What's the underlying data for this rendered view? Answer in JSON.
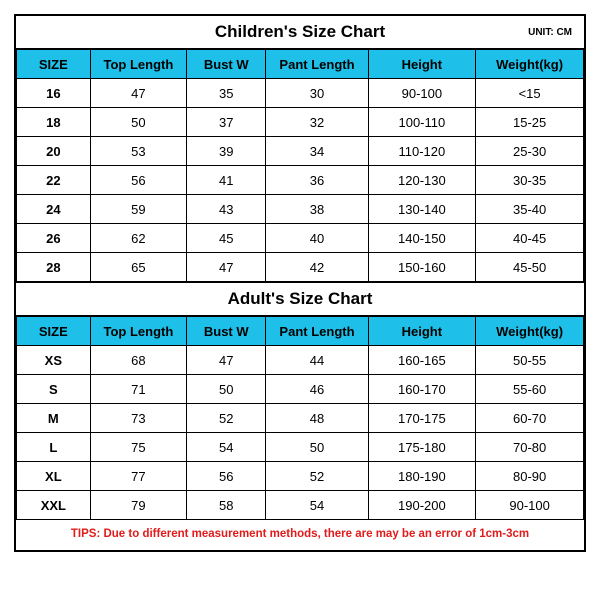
{
  "header_bg": "#1ec0e9",
  "tips_color": "#e11b1b",
  "children": {
    "title": "Children's Size Chart",
    "unit": "UNIT: CM",
    "columns": [
      "SIZE",
      "Top Length",
      "Bust W",
      "Pant Length",
      "Height",
      "Weight(kg)"
    ],
    "rows": [
      [
        "16",
        "47",
        "35",
        "30",
        "90-100",
        "<15"
      ],
      [
        "18",
        "50",
        "37",
        "32",
        "100-110",
        "15-25"
      ],
      [
        "20",
        "53",
        "39",
        "34",
        "110-120",
        "25-30"
      ],
      [
        "22",
        "56",
        "41",
        "36",
        "120-130",
        "30-35"
      ],
      [
        "24",
        "59",
        "43",
        "38",
        "130-140",
        "35-40"
      ],
      [
        "26",
        "62",
        "45",
        "40",
        "140-150",
        "40-45"
      ],
      [
        "28",
        "65",
        "47",
        "42",
        "150-160",
        "45-50"
      ]
    ]
  },
  "adult": {
    "title": "Adult's Size Chart",
    "columns": [
      "SIZE",
      "Top Length",
      "Bust W",
      "Pant Length",
      "Height",
      "Weight(kg)"
    ],
    "rows": [
      [
        "XS",
        "68",
        "47",
        "44",
        "160-165",
        "50-55"
      ],
      [
        "S",
        "71",
        "50",
        "46",
        "160-170",
        "55-60"
      ],
      [
        "M",
        "73",
        "52",
        "48",
        "170-175",
        "60-70"
      ],
      [
        "L",
        "75",
        "54",
        "50",
        "175-180",
        "70-80"
      ],
      [
        "XL",
        "77",
        "56",
        "52",
        "180-190",
        "80-90"
      ],
      [
        "XXL",
        "79",
        "58",
        "54",
        "190-200",
        "90-100"
      ]
    ]
  },
  "tips": "TIPS: Due to different measurement methods, there are may be an error of 1cm-3cm"
}
